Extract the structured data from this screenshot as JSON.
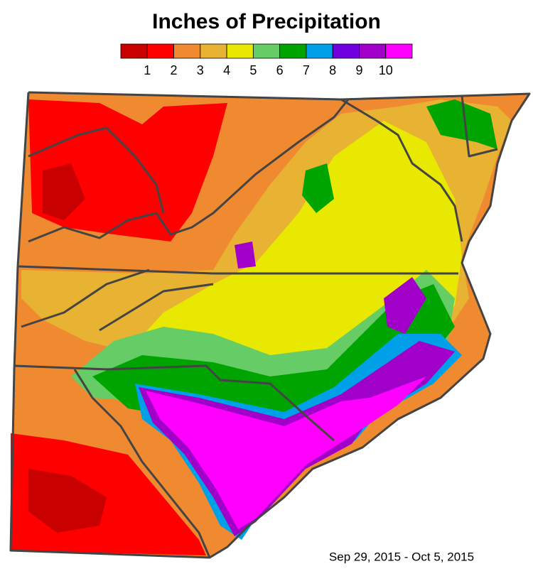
{
  "title": "Inches of Precipitation",
  "legend": {
    "colors": [
      "#c80000",
      "#ff0000",
      "#f08a30",
      "#e8b232",
      "#e8e800",
      "#66cc66",
      "#00a400",
      "#00a0e8",
      "#7000e0",
      "#a000c8",
      "#ff00ff"
    ],
    "labels": [
      1,
      2,
      3,
      4,
      5,
      6,
      7,
      8,
      9,
      10
    ]
  },
  "date_range": "Sep 29, 2015 - Oct 5, 2015"
}
